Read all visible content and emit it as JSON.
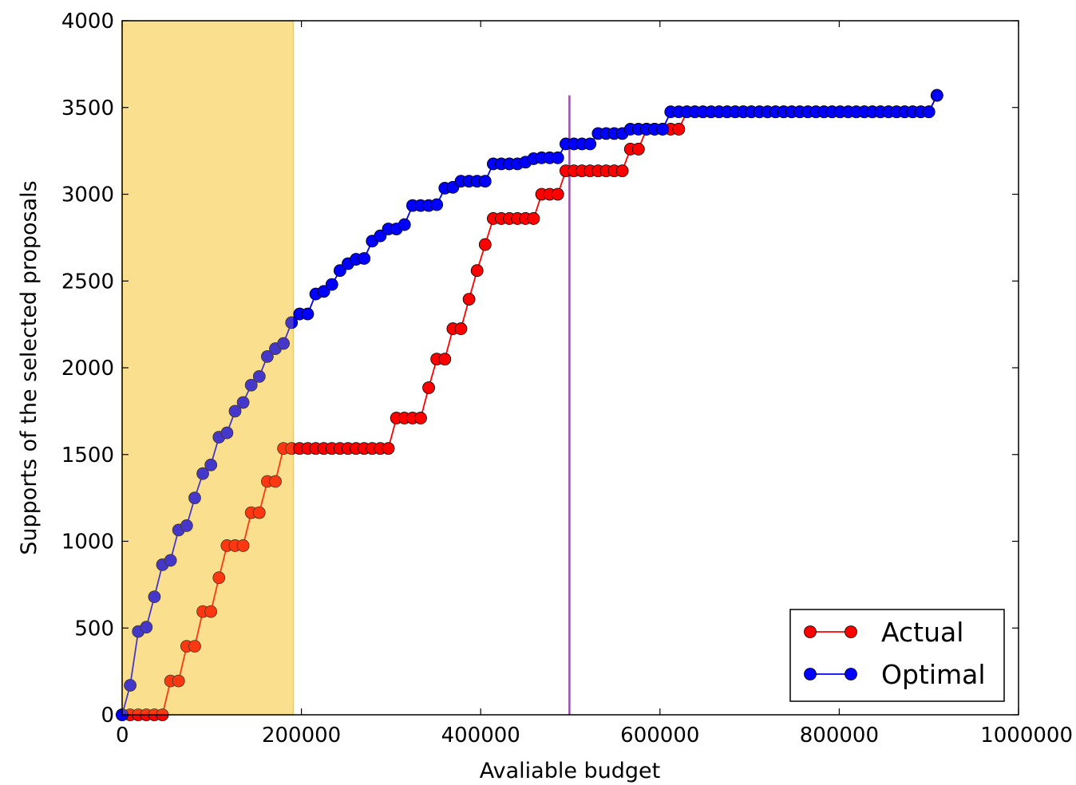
{
  "chart_data": {
    "type": "line",
    "xlabel": "Avaliable budget",
    "ylabel": "Supports of the selected proposals",
    "xlim": [
      0,
      1000000
    ],
    "ylim": [
      0,
      4000
    ],
    "x_ticks": [
      0,
      200000,
      400000,
      600000,
      800000,
      1000000
    ],
    "x_tick_labels": [
      "0",
      "200000",
      "400000",
      "600000",
      "800000",
      "1000000"
    ],
    "y_ticks": [
      0,
      500,
      1000,
      1500,
      2000,
      2500,
      3000,
      3500,
      4000
    ],
    "y_tick_labels": [
      "0",
      "500",
      "1000",
      "1500",
      "2000",
      "2500",
      "3000",
      "3500",
      "4000"
    ],
    "grid": false,
    "legend": {
      "position": "lower-right"
    },
    "shaded_region": {
      "x": [
        0,
        191000
      ],
      "color": "#fde9ad",
      "edge": "#f2c94c"
    },
    "vline": {
      "x": 499000,
      "y_max": 3570,
      "color": "#9b4fa8"
    },
    "series": [
      {
        "name": "Actual",
        "color": "#ff0000",
        "x": [
          0,
          9000,
          18000,
          27000,
          36000,
          45000,
          54000,
          63000,
          72000,
          81000,
          90000,
          99000,
          108000,
          117000,
          126000,
          135000,
          144000,
          153000,
          162000,
          171000,
          180000,
          189000,
          198000,
          207000,
          216000,
          225000,
          234000,
          243000,
          252000,
          261000,
          270000,
          279000,
          288000,
          297000,
          306000,
          315000,
          324000,
          333000,
          342000,
          351000,
          360000,
          369000,
          378000,
          387000,
          396000,
          405000,
          414000,
          423000,
          432000,
          441000,
          450000,
          459000,
          468000,
          477000,
          486000,
          495000,
          504000,
          513000,
          522000,
          531000,
          540000,
          549000,
          558000,
          567000,
          576000,
          585000,
          594000,
          603000,
          612000,
          621000,
          630000,
          639000,
          648000,
          657000,
          666000,
          675000,
          684000,
          693000,
          702000,
          711000,
          720000,
          729000,
          738000,
          747000,
          756000,
          765000,
          774000,
          783000,
          792000,
          801000,
          810000,
          819000,
          828000,
          837000,
          846000,
          855000,
          864000,
          873000,
          882000,
          891000,
          900000,
          909000
        ],
        "values": [
          0,
          0,
          0,
          0,
          0,
          0,
          195,
          195,
          395,
          395,
          595,
          595,
          790,
          975,
          975,
          975,
          1165,
          1165,
          1345,
          1345,
          1535,
          1535,
          1535,
          1535,
          1535,
          1535,
          1535,
          1535,
          1535,
          1535,
          1535,
          1535,
          1535,
          1535,
          1710,
          1710,
          1710,
          1710,
          1885,
          2050,
          2050,
          2225,
          2225,
          2395,
          2560,
          2710,
          2860,
          2860,
          2860,
          2860,
          2860,
          2860,
          3000,
          3000,
          3000,
          3135,
          3135,
          3135,
          3135,
          3135,
          3135,
          3135,
          3135,
          3260,
          3260,
          3375,
          3375,
          3375,
          3375,
          3375,
          3475,
          3475,
          3475,
          3475,
          3475,
          3475,
          3475,
          3475,
          3475,
          3475,
          3475,
          3475,
          3475,
          3475,
          3475,
          3475,
          3475,
          3475,
          3475,
          3475,
          3475,
          3475,
          3475,
          3475,
          3475,
          3475,
          3475,
          3475,
          3475,
          3475,
          3475,
          3570
        ]
      },
      {
        "name": "Optimal",
        "color": "#0000ff",
        "x": [
          0,
          9000,
          18000,
          27000,
          36000,
          45000,
          54000,
          63000,
          72000,
          81000,
          90000,
          99000,
          108000,
          117000,
          126000,
          135000,
          144000,
          153000,
          162000,
          171000,
          180000,
          189000,
          198000,
          207000,
          216000,
          225000,
          234000,
          243000,
          252000,
          261000,
          270000,
          279000,
          288000,
          297000,
          306000,
          315000,
          324000,
          333000,
          342000,
          351000,
          360000,
          369000,
          378000,
          387000,
          396000,
          405000,
          414000,
          423000,
          432000,
          441000,
          450000,
          459000,
          468000,
          477000,
          486000,
          495000,
          504000,
          513000,
          522000,
          531000,
          540000,
          549000,
          558000,
          567000,
          576000,
          585000,
          594000,
          603000,
          612000,
          621000,
          630000,
          639000,
          648000,
          657000,
          666000,
          675000,
          684000,
          693000,
          702000,
          711000,
          720000,
          729000,
          738000,
          747000,
          756000,
          765000,
          774000,
          783000,
          792000,
          801000,
          810000,
          819000,
          828000,
          837000,
          846000,
          855000,
          864000,
          873000,
          882000,
          891000,
          900000,
          909000
        ],
        "values": [
          0,
          170,
          480,
          505,
          680,
          865,
          890,
          1065,
          1090,
          1250,
          1390,
          1440,
          1600,
          1625,
          1750,
          1800,
          1900,
          1950,
          2065,
          2110,
          2140,
          2260,
          2310,
          2310,
          2425,
          2440,
          2480,
          2560,
          2600,
          2625,
          2630,
          2730,
          2760,
          2800,
          2800,
          2825,
          2935,
          2935,
          2935,
          2940,
          3035,
          3040,
          3075,
          3075,
          3075,
          3075,
          3175,
          3175,
          3175,
          3175,
          3185,
          3205,
          3210,
          3210,
          3210,
          3290,
          3290,
          3290,
          3290,
          3350,
          3350,
          3350,
          3350,
          3375,
          3375,
          3375,
          3375,
          3375,
          3475,
          3475,
          3475,
          3475,
          3475,
          3475,
          3475,
          3475,
          3475,
          3475,
          3475,
          3475,
          3475,
          3475,
          3475,
          3475,
          3475,
          3475,
          3475,
          3475,
          3475,
          3475,
          3475,
          3475,
          3475,
          3475,
          3475,
          3475,
          3475,
          3475,
          3475,
          3475,
          3475,
          3570
        ]
      }
    ]
  }
}
